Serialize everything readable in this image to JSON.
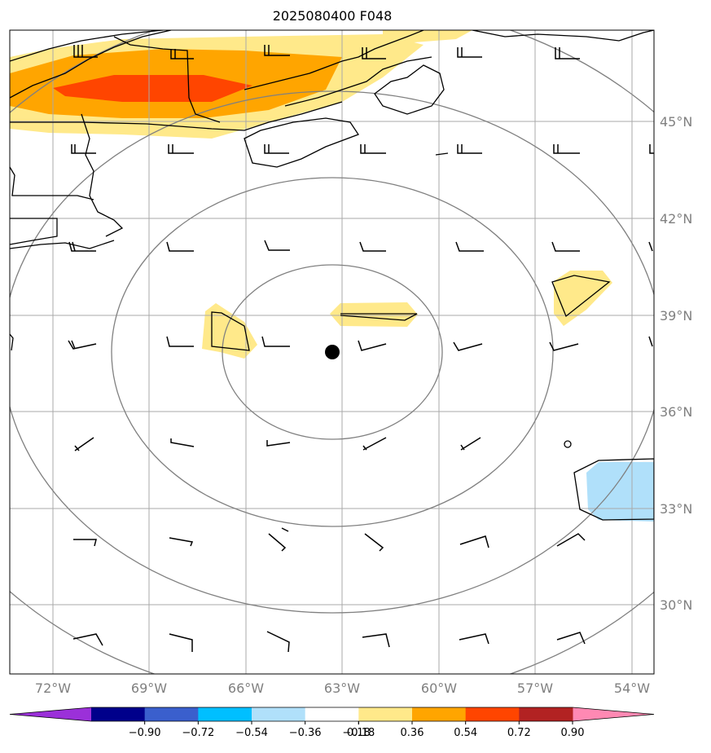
{
  "title": "2025080400 F048",
  "colors": {
    "gridline": "#a9a9a9",
    "range_ring": "#808080",
    "coast": "#000000",
    "center_marker": "#000000"
  },
  "map": {
    "projection": "orthographic-like",
    "center": {
      "lat": 37.8,
      "lon": -63.3
    },
    "lat_labels": [
      "45°N",
      "42°N",
      "39°N",
      "36°N",
      "33°N",
      "30°N"
    ],
    "lon_labels": [
      "72°W",
      "69°W",
      "66°W",
      "63°W",
      "60°W",
      "57°W",
      "54°W"
    ],
    "range_rings": 4,
    "wind_barbs": "black, sampled on a regular lat/lon lattice"
  },
  "shading": {
    "positive_regions": [
      "Gulf of Maine / southern Quebec band",
      "west of storm center",
      "north of storm center",
      "east near 56°W 40°N"
    ],
    "negative_regions": [
      "southeast near 54°W 34°N"
    ]
  },
  "colorbar": {
    "ticks": [
      "−0.90",
      "−0.72",
      "−0.54",
      "−0.36",
      "−0.18",
      "0.18",
      "0.36",
      "0.54",
      "0.72",
      "0.90"
    ],
    "colors": [
      "#9b30d9",
      "#00008b",
      "#3a5fcd",
      "#00bfff",
      "#b0e0fa",
      "#ffffff",
      "#ffe98a",
      "#ffa500",
      "#ff4500",
      "#b22222",
      "#ff89b3",
      "#ff89b3"
    ],
    "extend": "both"
  }
}
